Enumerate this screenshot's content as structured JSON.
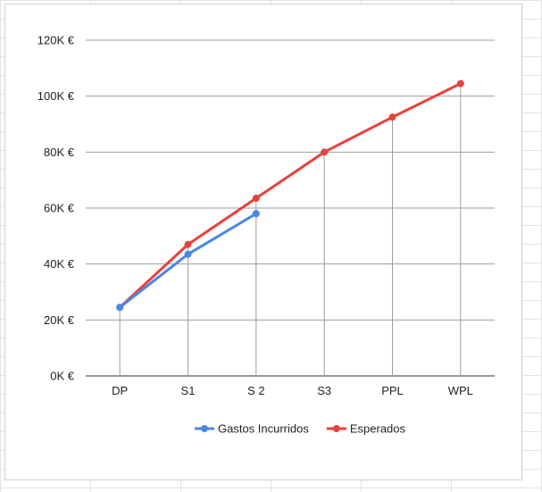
{
  "chart_data": {
    "type": "line",
    "categories": [
      "DP",
      "S1",
      "S 2",
      "S3",
      "PPL",
      "WPL"
    ],
    "y_tick_labels": [
      "0K €",
      "20K €",
      "40K €",
      "60K €",
      "80K €",
      "100K €",
      "120K €"
    ],
    "y_ticks": [
      0,
      20000,
      40000,
      60000,
      80000,
      100000,
      120000
    ],
    "ylim": [
      0,
      120000
    ],
    "grid": true,
    "legend_position": "bottom",
    "series": [
      {
        "name": "Gastos Incurridos",
        "color": "#4a86e8",
        "values": [
          24500,
          43500,
          58000,
          null,
          null,
          null
        ]
      },
      {
        "name": "Esperados",
        "color": "#e8413c",
        "values": [
          24500,
          47000,
          63500,
          80000,
          92500,
          104500
        ]
      }
    ]
  }
}
